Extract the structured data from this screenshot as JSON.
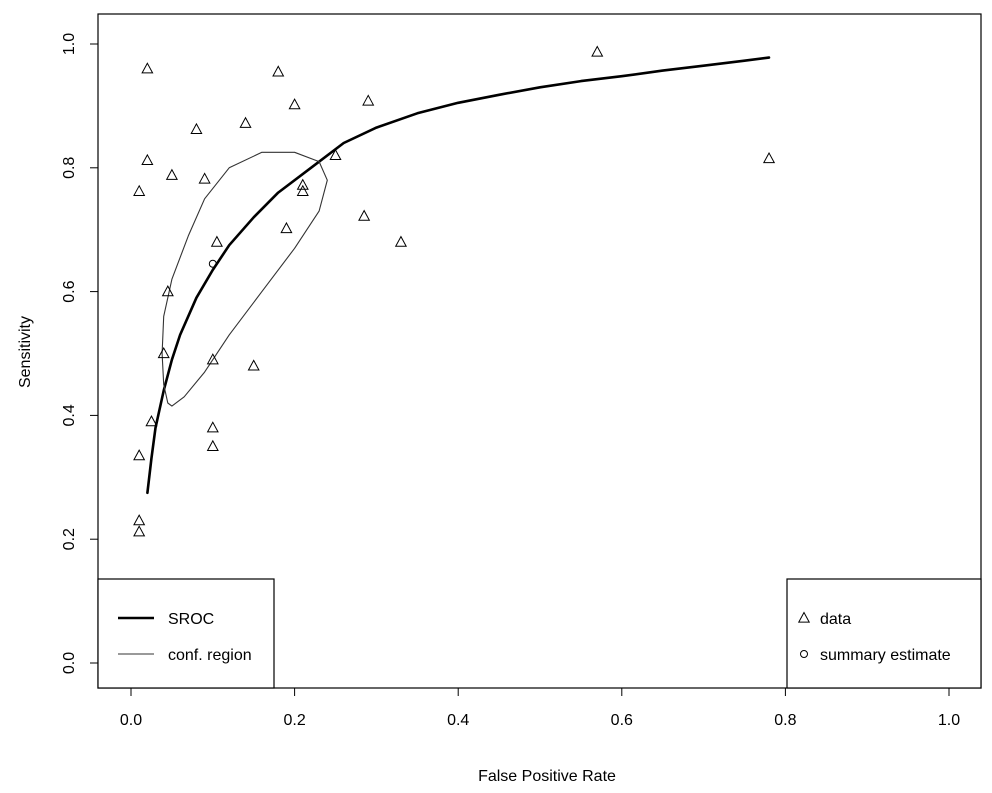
{
  "chart_data": {
    "type": "scatter",
    "xlabel": "False Positive Rate",
    "ylabel": "Sensitivity",
    "xlim": [
      0.0,
      1.0
    ],
    "ylim": [
      0.0,
      1.0
    ],
    "x_ticks": [
      "0.0",
      "0.2",
      "0.4",
      "0.6",
      "0.8",
      "1.0"
    ],
    "y_ticks": [
      "0.0",
      "0.2",
      "0.4",
      "0.6",
      "0.8",
      "1.0"
    ],
    "grid": false,
    "series": [
      {
        "name": "data",
        "marker": "triangle",
        "points": [
          [
            0.02,
            0.96
          ],
          [
            0.18,
            0.955
          ],
          [
            0.57,
            0.987
          ],
          [
            0.29,
            0.908
          ],
          [
            0.2,
            0.902
          ],
          [
            0.14,
            0.872
          ],
          [
            0.08,
            0.862
          ],
          [
            0.25,
            0.82
          ],
          [
            0.78,
            0.815
          ],
          [
            0.02,
            0.812
          ],
          [
            0.05,
            0.788
          ],
          [
            0.09,
            0.782
          ],
          [
            0.21,
            0.772
          ],
          [
            0.21,
            0.762
          ],
          [
            0.01,
            0.762
          ],
          [
            0.285,
            0.722
          ],
          [
            0.19,
            0.702
          ],
          [
            0.105,
            0.68
          ],
          [
            0.33,
            0.68
          ],
          [
            0.045,
            0.6
          ],
          [
            0.04,
            0.5
          ],
          [
            0.1,
            0.49
          ],
          [
            0.15,
            0.48
          ],
          [
            0.025,
            0.39
          ],
          [
            0.1,
            0.38
          ],
          [
            0.1,
            0.35
          ],
          [
            0.01,
            0.335
          ],
          [
            0.01,
            0.23
          ],
          [
            0.01,
            0.212
          ]
        ]
      },
      {
        "name": "summary estimate",
        "marker": "circle",
        "points": [
          [
            0.1,
            0.645
          ]
        ]
      },
      {
        "name": "SROC",
        "line": "thick",
        "points": [
          [
            0.02,
            0.275
          ],
          [
            0.025,
            0.33
          ],
          [
            0.03,
            0.38
          ],
          [
            0.04,
            0.44
          ],
          [
            0.05,
            0.49
          ],
          [
            0.06,
            0.53
          ],
          [
            0.08,
            0.59
          ],
          [
            0.1,
            0.635
          ],
          [
            0.12,
            0.675
          ],
          [
            0.15,
            0.72
          ],
          [
            0.18,
            0.76
          ],
          [
            0.22,
            0.8
          ],
          [
            0.26,
            0.84
          ],
          [
            0.3,
            0.865
          ],
          [
            0.35,
            0.888
          ],
          [
            0.4,
            0.905
          ],
          [
            0.45,
            0.918
          ],
          [
            0.5,
            0.93
          ],
          [
            0.55,
            0.94
          ],
          [
            0.6,
            0.948
          ],
          [
            0.65,
            0.957
          ],
          [
            0.7,
            0.965
          ],
          [
            0.75,
            0.973
          ],
          [
            0.78,
            0.978
          ]
        ]
      },
      {
        "name": "conf. region",
        "line": "thin",
        "points": [
          [
            0.045,
            0.42
          ],
          [
            0.04,
            0.45
          ],
          [
            0.038,
            0.5
          ],
          [
            0.04,
            0.56
          ],
          [
            0.05,
            0.62
          ],
          [
            0.07,
            0.69
          ],
          [
            0.09,
            0.75
          ],
          [
            0.12,
            0.8
          ],
          [
            0.16,
            0.825
          ],
          [
            0.2,
            0.825
          ],
          [
            0.23,
            0.81
          ],
          [
            0.24,
            0.78
          ],
          [
            0.23,
            0.73
          ],
          [
            0.2,
            0.67
          ],
          [
            0.16,
            0.6
          ],
          [
            0.12,
            0.53
          ],
          [
            0.09,
            0.47
          ],
          [
            0.065,
            0.43
          ],
          [
            0.05,
            0.415
          ],
          [
            0.045,
            0.42
          ]
        ]
      }
    ],
    "legend": [
      {
        "placement": "bottom-left",
        "entries": [
          {
            "label": "SROC",
            "symbol": "thick-line"
          },
          {
            "label": "conf. region",
            "symbol": "thin-line"
          }
        ]
      },
      {
        "placement": "bottom-right",
        "entries": [
          {
            "label": "data",
            "symbol": "triangle"
          },
          {
            "label": "summary estimate",
            "symbol": "circle"
          }
        ]
      }
    ]
  }
}
